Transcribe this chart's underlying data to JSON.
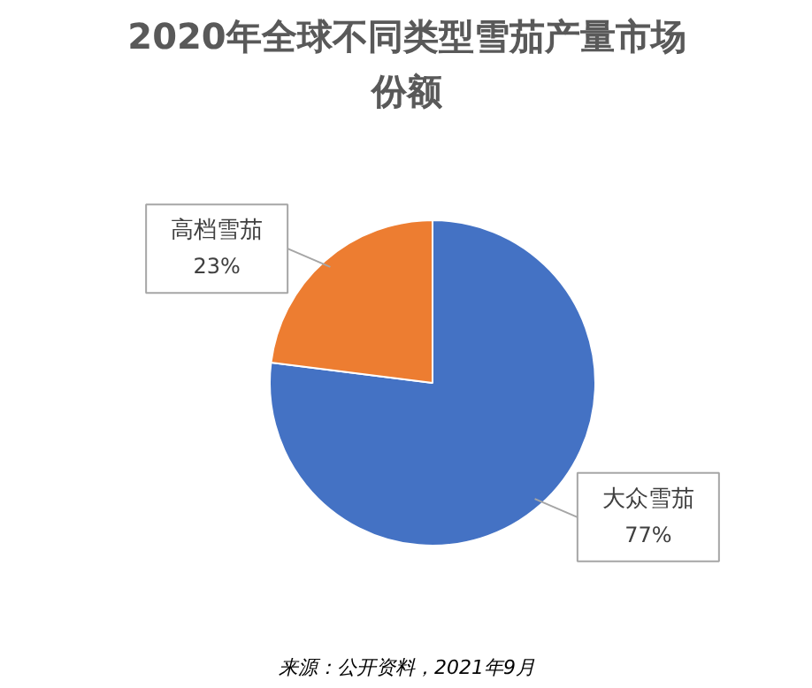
{
  "chart_data": {
    "type": "pie",
    "title": "2020年全球不同类型雪茄产量市场份额",
    "categories": [
      "大众雪茄",
      "高档雪茄"
    ],
    "values": [
      77,
      23
    ],
    "colors": [
      "#4472c4",
      "#ed7d31"
    ],
    "value_labels": [
      "77%",
      "23%"
    ],
    "annotations": [
      "来源：公开资料，2021年9月"
    ]
  }
}
